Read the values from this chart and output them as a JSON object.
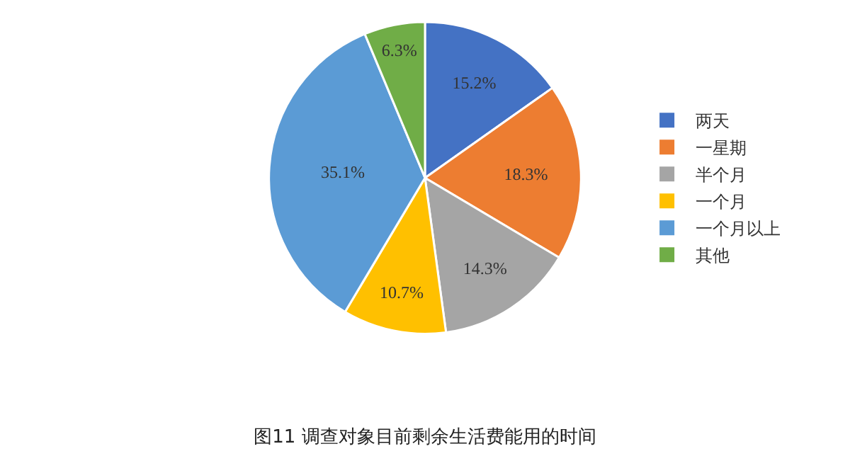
{
  "chart_data": {
    "type": "pie",
    "title": "图11 调查对象目前剩余生活费能用的时间",
    "categories": [
      "两天",
      "一星期",
      "半个月",
      "一个月",
      "一个月以上",
      "其他"
    ],
    "values": [
      15.2,
      18.3,
      14.3,
      10.7,
      35.1,
      6.3
    ],
    "colors": [
      "#4472c4",
      "#ed7d31",
      "#a5a5a5",
      "#ffc000",
      "#5b9bd5",
      "#70ad47"
    ],
    "value_labels": [
      "15.2%",
      "18.3%",
      "14.3%",
      "10.7%",
      "35.1%",
      "6.3%"
    ],
    "legend": "right"
  }
}
